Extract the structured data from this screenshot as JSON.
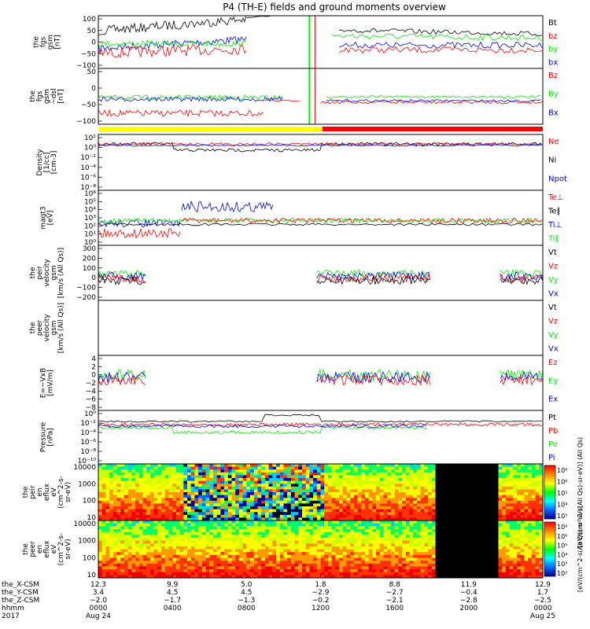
{
  "title": "P4 (TH-E) fields and ground moments overview",
  "colors": {
    "black": "#000000",
    "red": "#ff0000",
    "green": "#00ee00",
    "blue": "#0000ff",
    "yellow": "#ffff00"
  },
  "orbit_bar": {
    "segments": [
      {
        "color": "yellow",
        "from_hour": 0,
        "to_hour": 12.1
      },
      {
        "color": "red",
        "from_hour": 12.1,
        "to_hour": 24
      }
    ]
  },
  "chart_data": [
    {
      "type": "line",
      "id": "fgs_gsm",
      "ylabel": [
        "the",
        "fgs",
        "gsm",
        "[nT]"
      ],
      "ylim": [
        -100,
        100
      ],
      "yticks": [
        "100",
        "50",
        "0",
        "−50",
        "−100"
      ],
      "series": [
        {
          "name": "Bt",
          "color": "black"
        },
        {
          "name": "bz",
          "color": "red"
        },
        {
          "name": "by",
          "color": "green"
        },
        {
          "name": "bx",
          "color": "blue"
        }
      ]
    },
    {
      "type": "line",
      "id": "fgs_gsm_dsl",
      "ylabel": [
        "the",
        "fgs",
        "gsm",
        "~dsl",
        "[nT]"
      ],
      "ylim": [
        -125,
        50
      ],
      "yticks": [
        "50",
        "0",
        "−50",
        "−100"
      ],
      "series": [
        {
          "name": "Bz",
          "color": "red"
        },
        {
          "name": "By",
          "color": "green"
        },
        {
          "name": "Bx",
          "color": "blue"
        }
      ]
    },
    {
      "type": "line",
      "id": "density",
      "ylabel": [
        "Density",
        "[1/cc]",
        "[cm-3]"
      ],
      "ylim": [
        -8,
        2
      ],
      "yscale": "log",
      "yticks": [
        "10²",
        "10⁰",
        "10⁻²",
        "10⁻⁴",
        "10⁻⁶",
        "10⁻⁸"
      ],
      "series": [
        {
          "name": "Ne",
          "color": "red"
        },
        {
          "name": "Ni",
          "color": "black"
        },
        {
          "name": "Npot",
          "color": "blue"
        }
      ]
    },
    {
      "type": "line",
      "id": "temperature",
      "ylabel": [
        "magt3",
        "[eV]"
      ],
      "ylim": [
        0,
        6
      ],
      "yscale": "log",
      "yticks": [
        "10⁶",
        "10⁵",
        "10⁴",
        "10³",
        "10²",
        "10¹",
        "10⁰"
      ],
      "series": [
        {
          "name": "Te⊥",
          "color": "red"
        },
        {
          "name": "Te∥",
          "color": "black"
        },
        {
          "name": "Ti⊥",
          "color": "blue"
        },
        {
          "name": "Ti∥",
          "color": "green"
        }
      ]
    },
    {
      "type": "line",
      "id": "peir_velocity",
      "ylabel": [
        "the",
        "peir",
        "velocity",
        "gsm",
        "[km/s (All Qs)]"
      ],
      "ylim": [
        -200,
        300
      ],
      "yticks": [
        "300",
        "200",
        "100",
        "0",
        "−100",
        "−200"
      ],
      "series": [
        {
          "name": "Vt",
          "color": "black"
        },
        {
          "name": "Vz",
          "color": "red"
        },
        {
          "name": "Vy",
          "color": "green"
        },
        {
          "name": "Vx",
          "color": "blue"
        }
      ]
    },
    {
      "type": "line",
      "id": "peer_velocity",
      "ylabel": [
        "the",
        "peer",
        "velocity",
        "gsm",
        "[km/s (All Qs)]"
      ],
      "series": [
        {
          "name": "Vt",
          "color": "black"
        },
        {
          "name": "Vz",
          "color": "red"
        },
        {
          "name": "Vy",
          "color": "green"
        },
        {
          "name": "Vx",
          "color": "blue"
        }
      ]
    },
    {
      "type": "line",
      "id": "efield",
      "ylabel": [
        "E=−VxB",
        "[mV/m]"
      ],
      "ylim": [
        -8,
        4
      ],
      "yticks": [
        "4",
        "2",
        "0",
        "−2",
        "−4",
        "−6",
        "−8"
      ],
      "series": [
        {
          "name": "Ez",
          "color": "red"
        },
        {
          "name": "Ey",
          "color": "green"
        },
        {
          "name": "Ex",
          "color": "blue"
        }
      ]
    },
    {
      "type": "line",
      "id": "pressure",
      "ylabel": [
        "Pressure",
        "[nPa]"
      ],
      "ylim": [
        -10,
        0
      ],
      "yscale": "log",
      "yticks": [
        "10⁰",
        "10⁻²",
        "10⁻⁴",
        "10⁻⁶",
        "10⁻⁸",
        "10⁻¹⁰"
      ],
      "series": [
        {
          "name": "Pt",
          "color": "black"
        },
        {
          "name": "Pb",
          "color": "red"
        },
        {
          "name": "Pe",
          "color": "green"
        },
        {
          "name": "Pi",
          "color": "blue"
        }
      ]
    },
    {
      "type": "heatmap",
      "id": "peir_en_eflux",
      "ylabel": [
        "the",
        "peir",
        "en",
        "eflux",
        "eV",
        "(cm^2-s-",
        "sr-eV)"
      ],
      "yscale": "log",
      "yticks": [
        "10000",
        "1000",
        "100",
        "10"
      ],
      "colorbar": {
        "ticks": [
          "10⁸",
          "10⁶",
          "10⁵",
          "10⁴",
          "10³"
        ],
        "label": "[eV/(cm^2-s(All Qs)-sr-eV)] (All Qs)"
      }
    },
    {
      "type": "heatmap",
      "id": "peer_en_eflux",
      "ylabel": [
        "the",
        "peer",
        "en",
        "eflux",
        "eV",
        "(cm^2-s-",
        "sr-eV)"
      ],
      "yscale": "log",
      "yticks": [
        "10000",
        "1000",
        "100",
        "10"
      ],
      "colorbar": {
        "ticks": [
          "10⁸",
          "10⁶",
          "10⁵",
          "10⁴",
          "10³",
          "10²"
        ],
        "label": "[eV/(cm^2-s(All Qs)-sr-eV)]"
      }
    }
  ],
  "xaxis": {
    "rows": [
      {
        "label": "the_X-CSM",
        "values": [
          "12.3",
          "9.9",
          "5.0",
          "1.8",
          "8.8",
          "11.9",
          "12.9"
        ]
      },
      {
        "label": "the_Y-CSM",
        "values": [
          "3.4",
          "4.5",
          "4.5",
          "−2.9",
          "−2.7",
          "−0.4",
          "1.7"
        ]
      },
      {
        "label": "the_Z-CSM",
        "values": [
          "−2.0",
          "−1.7",
          "−1.3",
          "−0.2",
          "−2.1",
          "−2.8",
          "−2.5"
        ]
      },
      {
        "label": "hhmm",
        "values": [
          "0000",
          "0400",
          "0800",
          "1200",
          "1600",
          "2000",
          "0000"
        ]
      }
    ],
    "year": "2017",
    "date_start": "Aug 24",
    "date_end": "Aug 25"
  }
}
